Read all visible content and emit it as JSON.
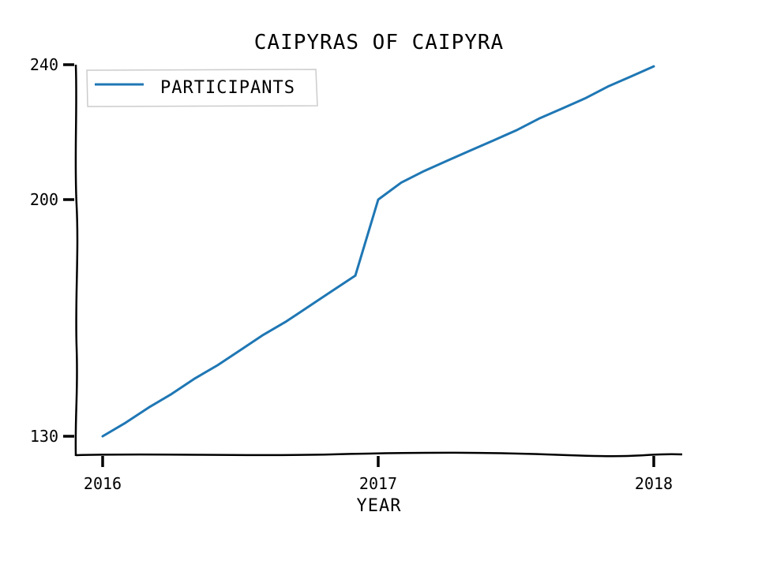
{
  "chart_data": {
    "type": "line",
    "title": "CAIPYRAS OF CAIPYRA",
    "xlabel": "YEAR",
    "ylabel": "",
    "x_ticks": [
      "2016",
      "2017",
      "2018"
    ],
    "y_ticks": [
      130,
      200,
      240
    ],
    "xlim": [
      2015.9,
      2018.1
    ],
    "ylim": [
      124,
      241
    ],
    "legend_position": "top-left",
    "grid": false,
    "colors": {
      "line": "#1f77b4",
      "axis": "#000000"
    },
    "series": [
      {
        "name": "PARTICIPANTS",
        "x": [
          2016.0,
          2016.083,
          2016.167,
          2016.25,
          2016.333,
          2016.417,
          2016.5,
          2016.583,
          2016.667,
          2016.75,
          2016.833,
          2016.917,
          2017.0,
          2017.083,
          2017.167,
          2017.25,
          2017.333,
          2017.417,
          2017.5,
          2017.583,
          2017.667,
          2017.75,
          2017.833,
          2017.917,
          2018.0
        ],
        "y": [
          130,
          134,
          138.5,
          142.5,
          147,
          151,
          155.5,
          160,
          164,
          168.5,
          173,
          177.5,
          200,
          205,
          208.5,
          211.5,
          214.5,
          217.5,
          220.5,
          224,
          227,
          230,
          233.5,
          236.5,
          239.5
        ]
      }
    ]
  }
}
